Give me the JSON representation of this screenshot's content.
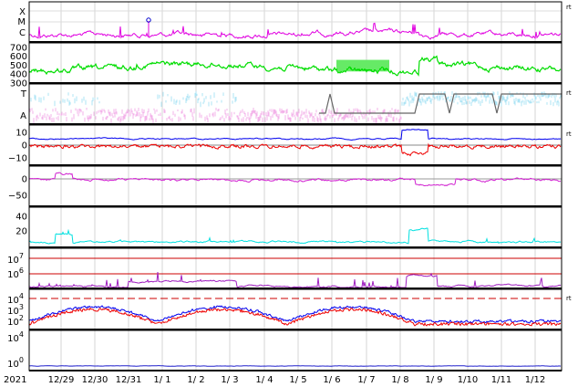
{
  "chart_data": [
    {
      "panel": "xray_flux",
      "type": "line",
      "y_labels": [
        "X",
        "M",
        "C"
      ],
      "right_label": "rt",
      "color": "#e000e0"
    },
    {
      "panel": "solar_wind_speed",
      "type": "line",
      "ylim": [
        300,
        750
      ],
      "y_ticks": [
        "700",
        "600",
        "500",
        "400",
        "300"
      ],
      "color": "#00dd00"
    },
    {
      "panel": "imf_polarity",
      "type": "line",
      "y_labels": [
        "T",
        "A"
      ],
      "right_label": "rt",
      "colors": {
        "toward": "#aee4f5",
        "away": "#f3b3ea",
        "sector": "#666666"
      }
    },
    {
      "panel": "imf_bz_bt",
      "type": "line",
      "ylim": [
        -15,
        15
      ],
      "y_ticks": [
        "10",
        "0",
        "−10"
      ],
      "right_label": "rt",
      "series_colors": [
        "#0000ee",
        "#ee0000"
      ]
    },
    {
      "panel": "dst",
      "type": "line",
      "ylim": [
        -80,
        20
      ],
      "y_ticks": [
        "0",
        "−50"
      ],
      "color": "#d020d0"
    },
    {
      "panel": "kp_like",
      "type": "line",
      "ylim": [
        0,
        50
      ],
      "y_ticks": [
        "40",
        "20"
      ],
      "color": "#00e0e0"
    },
    {
      "panel": "proton_flux",
      "type": "line",
      "scale": "log",
      "y_ticks": [
        "10",
        "10"
      ],
      "y_exponents": [
        "7",
        "6"
      ],
      "colors": {
        "series": "#a020c0",
        "threshold": "#cc0000"
      }
    },
    {
      "panel": "electron_flux",
      "type": "line",
      "scale": "log",
      "y_ticks": [
        "10",
        "10",
        "10"
      ],
      "y_exponents": [
        "4",
        "3",
        "2"
      ],
      "right_label": "rt",
      "series_colors": [
        "#0000ee",
        "#ee0000"
      ],
      "threshold_color": "#cc0000"
    },
    {
      "panel": "neutron_monitor",
      "type": "line",
      "scale": "log",
      "y_ticks": [
        "10",
        "10"
      ],
      "y_exponents": [
        "4",
        "0"
      ],
      "color": "#2020cc"
    }
  ],
  "x_axis": {
    "prefix": "2021",
    "labels": [
      "12/29",
      "12/30",
      "12/31",
      "1/ 1",
      "1/ 2",
      "1/ 3",
      "1/ 4",
      "1/ 5",
      "1/ 6",
      "1/ 7",
      "1/ 8",
      "1/ 9",
      "1/10",
      "1/11",
      "1/12"
    ]
  }
}
